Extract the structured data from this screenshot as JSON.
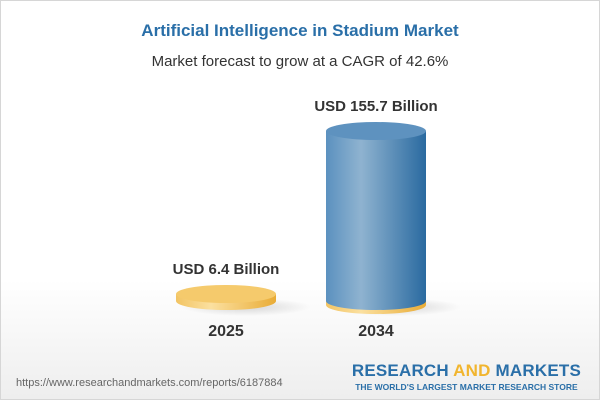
{
  "title": "Artificial Intelligence in Stadium Market",
  "subtitle": "Market forecast to grow at a CAGR of 42.6%",
  "chart_data": {
    "type": "bar",
    "style": "3d-cylinder",
    "categories": [
      "2025",
      "2034"
    ],
    "values": [
      6.4,
      155.7
    ],
    "data_labels": [
      "USD 6.4 Billion",
      "USD 155.7 Billion"
    ],
    "unit": "USD Billion",
    "colors": [
      "#f5c96a",
      "#4a86b8"
    ],
    "grid": false
  },
  "footer": {
    "url": "https://www.researchandmarkets.com/reports/6187884",
    "logo_part1": "RESEARCH ",
    "logo_part2": "AND",
    "logo_part3": " MARKETS",
    "tagline": "THE WORLD'S LARGEST MARKET RESEARCH STORE"
  }
}
